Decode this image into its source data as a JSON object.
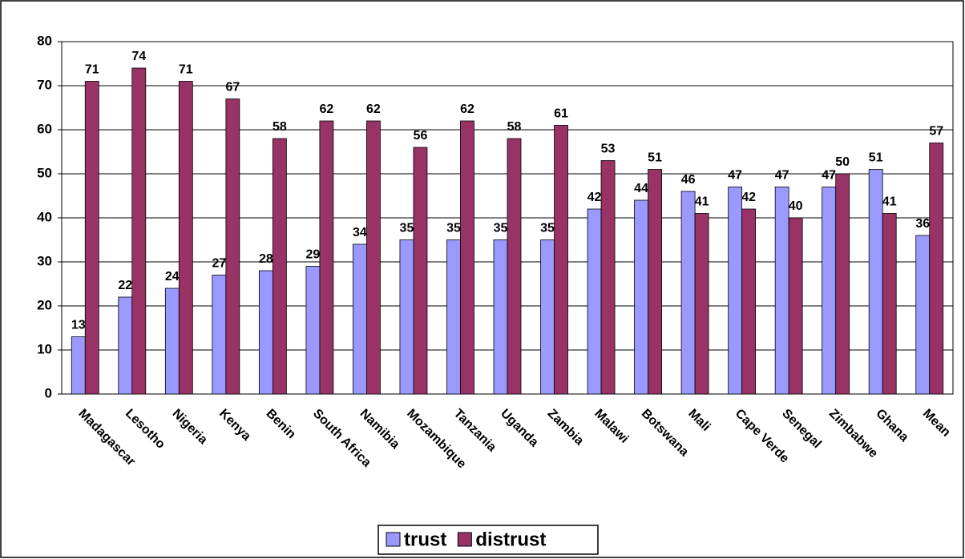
{
  "chart_data": {
    "type": "bar",
    "categories": [
      "Madagascar",
      "Lesotho",
      "Nigeria",
      "Kenya",
      "Benin",
      "South Africa",
      "Namibia",
      "Mozambique",
      "Tanzania",
      "Uganda",
      "Zambia",
      "Malawi",
      "Botswana",
      "Mali",
      "Cape Verde",
      "Senegal",
      "Zimbabwe",
      "Ghana",
      "Mean"
    ],
    "series": [
      {
        "name": "trust",
        "color": "#9999ff",
        "values": [
          13,
          22,
          24,
          27,
          28,
          29,
          34,
          35,
          35,
          35,
          35,
          42,
          44,
          46,
          47,
          47,
          47,
          51,
          36
        ]
      },
      {
        "name": "distrust",
        "color": "#993366",
        "values": [
          71,
          74,
          71,
          67,
          58,
          62,
          62,
          56,
          62,
          58,
          61,
          53,
          51,
          41,
          42,
          40,
          50,
          41,
          57
        ]
      }
    ],
    "ylim": [
      0,
      80
    ],
    "yticks": [
      0,
      10,
      20,
      30,
      40,
      50,
      60,
      70,
      80
    ],
    "grid": true,
    "legend": "bottom"
  }
}
